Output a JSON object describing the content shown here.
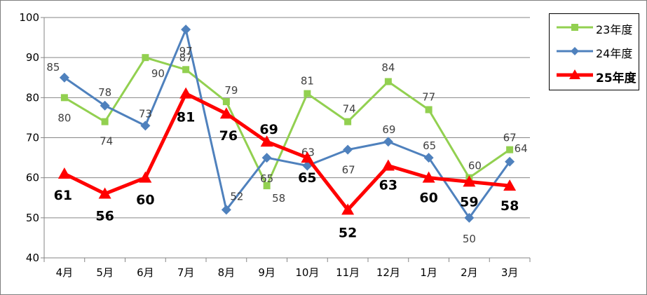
{
  "colors": {
    "s23": "#92d050",
    "s24": "#4f81bd",
    "s25": "#ff0000",
    "grid": "#868686"
  },
  "chart_data": {
    "type": "line",
    "categories": [
      "4月",
      "5月",
      "6月",
      "7月",
      "8月",
      "9月",
      "10月",
      "11月",
      "12月",
      "1月",
      "2月",
      "3月"
    ],
    "yticks": [
      "40",
      "50",
      "60",
      "70",
      "80",
      "90",
      "100"
    ],
    "ylim": [
      40,
      100
    ],
    "grid": true,
    "legend": "right",
    "series": [
      {
        "name": "23年度",
        "marker": "square",
        "values": [
          80,
          74,
          90,
          87,
          79,
          58,
          81,
          74,
          84,
          77,
          60,
          67
        ],
        "labels": [
          "80",
          "74",
          "90",
          "87",
          "79",
          "58",
          "81",
          "74",
          "84",
          "77",
          "60",
          "67"
        ]
      },
      {
        "name": "24年度",
        "marker": "diamond",
        "values": [
          85,
          78,
          73,
          97,
          52,
          65,
          63,
          67,
          69,
          65,
          50,
          64
        ],
        "labels": [
          "85",
          "78",
          "73",
          "97",
          "52",
          "65",
          "63",
          "67",
          "69",
          "65",
          "50",
          "64"
        ]
      },
      {
        "name": "25年度",
        "marker": "triangle",
        "values": [
          61,
          56,
          60,
          81,
          76,
          69,
          65,
          52,
          63,
          60,
          59,
          58
        ],
        "labels": [
          "61",
          "56",
          "60",
          "81",
          "76",
          "69",
          "65",
          "52",
          "63",
          "60",
          "59",
          "58"
        ]
      }
    ]
  }
}
